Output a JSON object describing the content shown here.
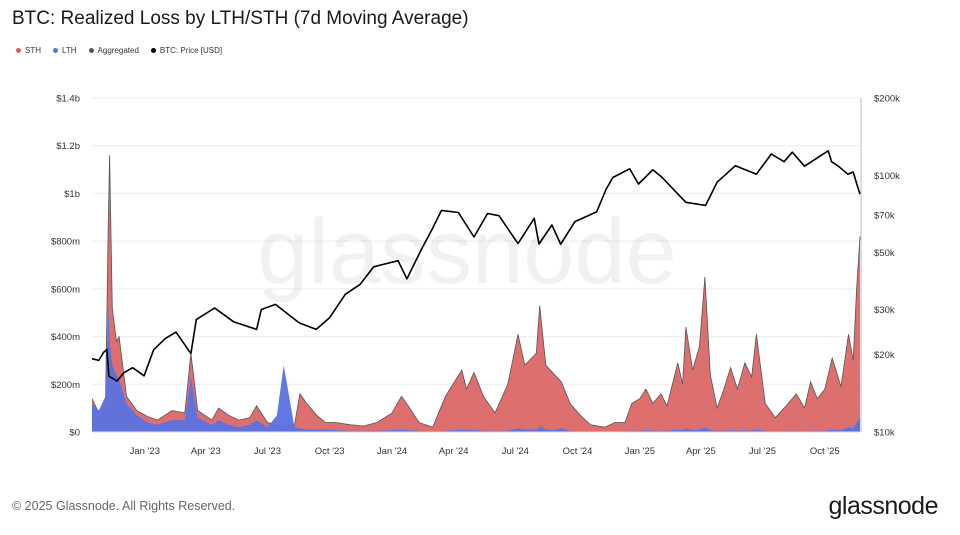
{
  "header": {
    "title": "BTC: Realized Loss by LTH/STH (7d Moving Average)"
  },
  "legend": [
    {
      "label": "STH",
      "color": "#d9605e"
    },
    {
      "label": "LTH",
      "color": "#5a72e0"
    },
    {
      "label": "Aggregated",
      "color": "#555555"
    },
    {
      "label": "BTC: Price [USD]",
      "color": "#000000"
    }
  ],
  "watermark": "glassnode",
  "footer": {
    "copyright": "© 2025 Glassnode. All Rights Reserved.",
    "logo": "glassnode"
  },
  "chart_data": {
    "type": "area",
    "title": "BTC: Realized Loss by LTH/STH (7d Moving Average)",
    "x_ticks": [
      "Jan '23",
      "Apr '23",
      "Jul '23",
      "Oct '23",
      "Jan '24",
      "Apr '24",
      "Jul '24",
      "Oct '24",
      "Jan '25",
      "Apr '25",
      "Jul '25",
      "Oct '25"
    ],
    "x_range": [
      "2022-10-15",
      "2025-11-22"
    ],
    "y_left": {
      "ticks": [
        "$0",
        "$200m",
        "$400m",
        "$600m",
        "$800m",
        "$1b",
        "$1.2b",
        "$1.4b"
      ],
      "range": [
        0,
        1400
      ],
      "unit": "USD millions"
    },
    "y_right": {
      "ticks": [
        "$10k",
        "$20k",
        "$30k",
        "$50k",
        "$70k",
        "$100k",
        "$200k"
      ],
      "range": [
        10000,
        200000
      ],
      "scale": "log"
    },
    "grid": true,
    "legend_position": "top-left",
    "series": [
      {
        "name": "STH",
        "color": "#d9605e",
        "points": [
          [
            "2022-10-15",
            140
          ],
          [
            "2022-10-25",
            80
          ],
          [
            "2022-11-04",
            120
          ],
          [
            "2022-11-08",
            880
          ],
          [
            "2022-11-10",
            1160
          ],
          [
            "2022-11-14",
            520
          ],
          [
            "2022-11-20",
            380
          ],
          [
            "2022-11-24",
            400
          ],
          [
            "2022-12-05",
            150
          ],
          [
            "2022-12-20",
            90
          ],
          [
            "2023-01-05",
            65
          ],
          [
            "2023-01-20",
            50
          ],
          [
            "2023-02-10",
            90
          ],
          [
            "2023-03-01",
            80
          ],
          [
            "2023-03-10",
            330
          ],
          [
            "2023-03-20",
            90
          ],
          [
            "2023-04-10",
            50
          ],
          [
            "2023-04-20",
            100
          ],
          [
            "2023-05-05",
            70
          ],
          [
            "2023-05-20",
            50
          ],
          [
            "2023-06-05",
            60
          ],
          [
            "2023-06-15",
            110
          ],
          [
            "2023-07-01",
            40
          ],
          [
            "2023-07-15",
            30
          ],
          [
            "2023-07-25",
            20
          ],
          [
            "2023-08-10",
            30
          ],
          [
            "2023-08-18",
            160
          ],
          [
            "2023-08-28",
            120
          ],
          [
            "2023-09-12",
            70
          ],
          [
            "2023-09-25",
            40
          ],
          [
            "2023-10-10",
            40
          ],
          [
            "2023-11-01",
            30
          ],
          [
            "2023-11-20",
            25
          ],
          [
            "2023-12-10",
            40
          ],
          [
            "2024-01-01",
            80
          ],
          [
            "2024-01-15",
            150
          ],
          [
            "2024-01-25",
            110
          ],
          [
            "2024-02-10",
            40
          ],
          [
            "2024-03-01",
            20
          ],
          [
            "2024-03-20",
            150
          ],
          [
            "2024-04-13",
            260
          ],
          [
            "2024-04-20",
            180
          ],
          [
            "2024-05-01",
            250
          ],
          [
            "2024-05-15",
            150
          ],
          [
            "2024-06-01",
            80
          ],
          [
            "2024-06-20",
            200
          ],
          [
            "2024-07-05",
            410
          ],
          [
            "2024-07-15",
            280
          ],
          [
            "2024-08-01",
            330
          ],
          [
            "2024-08-06",
            530
          ],
          [
            "2024-08-15",
            280
          ],
          [
            "2024-08-28",
            240
          ],
          [
            "2024-09-07",
            210
          ],
          [
            "2024-09-20",
            120
          ],
          [
            "2024-10-05",
            70
          ],
          [
            "2024-10-20",
            30
          ],
          [
            "2024-11-10",
            20
          ],
          [
            "2024-11-25",
            40
          ],
          [
            "2024-12-10",
            40
          ],
          [
            "2024-12-20",
            120
          ],
          [
            "2025-01-01",
            140
          ],
          [
            "2025-01-10",
            180
          ],
          [
            "2025-01-20",
            120
          ],
          [
            "2025-02-01",
            160
          ],
          [
            "2025-02-10",
            110
          ],
          [
            "2025-02-26",
            290
          ],
          [
            "2025-03-05",
            200
          ],
          [
            "2025-03-10",
            440
          ],
          [
            "2025-03-20",
            260
          ],
          [
            "2025-03-30",
            360
          ],
          [
            "2025-04-07",
            650
          ],
          [
            "2025-04-15",
            240
          ],
          [
            "2025-04-25",
            100
          ],
          [
            "2025-05-05",
            180
          ],
          [
            "2025-05-15",
            270
          ],
          [
            "2025-05-25",
            180
          ],
          [
            "2025-06-05",
            290
          ],
          [
            "2025-06-15",
            230
          ],
          [
            "2025-06-22",
            410
          ],
          [
            "2025-07-05",
            120
          ],
          [
            "2025-07-20",
            60
          ],
          [
            "2025-08-05",
            110
          ],
          [
            "2025-08-20",
            160
          ],
          [
            "2025-09-01",
            100
          ],
          [
            "2025-09-10",
            210
          ],
          [
            "2025-09-20",
            140
          ],
          [
            "2025-10-01",
            180
          ],
          [
            "2025-10-12",
            310
          ],
          [
            "2025-10-25",
            190
          ],
          [
            "2025-11-05",
            410
          ],
          [
            "2025-11-12",
            300
          ],
          [
            "2025-11-17",
            600
          ],
          [
            "2025-11-22",
            820
          ]
        ]
      },
      {
        "name": "LTH",
        "color": "#5a72e0",
        "points": [
          [
            "2022-10-15",
            120
          ],
          [
            "2022-10-25",
            90
          ],
          [
            "2022-11-04",
            150
          ],
          [
            "2022-11-08",
            520
          ],
          [
            "2022-11-10",
            380
          ],
          [
            "2022-11-14",
            280
          ],
          [
            "2022-11-20",
            240
          ],
          [
            "2022-11-24",
            220
          ],
          [
            "2022-12-05",
            120
          ],
          [
            "2022-12-20",
            70
          ],
          [
            "2023-01-05",
            40
          ],
          [
            "2023-01-20",
            30
          ],
          [
            "2023-02-10",
            50
          ],
          [
            "2023-03-01",
            50
          ],
          [
            "2023-03-10",
            230
          ],
          [
            "2023-03-20",
            60
          ],
          [
            "2023-04-10",
            30
          ],
          [
            "2023-04-20",
            50
          ],
          [
            "2023-05-05",
            30
          ],
          [
            "2023-05-20",
            20
          ],
          [
            "2023-06-05",
            30
          ],
          [
            "2023-06-15",
            50
          ],
          [
            "2023-07-01",
            20
          ],
          [
            "2023-07-15",
            70
          ],
          [
            "2023-07-25",
            280
          ],
          [
            "2023-08-10",
            20
          ],
          [
            "2023-08-18",
            15
          ],
          [
            "2023-08-28",
            10
          ],
          [
            "2023-09-12",
            10
          ],
          [
            "2023-09-25",
            10
          ],
          [
            "2023-10-10",
            8
          ],
          [
            "2023-11-01",
            5
          ],
          [
            "2023-11-20",
            5
          ],
          [
            "2023-12-10",
            5
          ],
          [
            "2024-01-01",
            8
          ],
          [
            "2024-01-15",
            10
          ],
          [
            "2024-01-25",
            8
          ],
          [
            "2024-02-10",
            5
          ],
          [
            "2024-03-01",
            3
          ],
          [
            "2024-03-20",
            5
          ],
          [
            "2024-04-13",
            10
          ],
          [
            "2024-04-20",
            8
          ],
          [
            "2024-05-01",
            8
          ],
          [
            "2024-05-15",
            5
          ],
          [
            "2024-06-01",
            5
          ],
          [
            "2024-06-20",
            5
          ],
          [
            "2024-07-05",
            15
          ],
          [
            "2024-07-15",
            10
          ],
          [
            "2024-08-01",
            10
          ],
          [
            "2024-08-06",
            25
          ],
          [
            "2024-08-15",
            10
          ],
          [
            "2024-08-28",
            8
          ],
          [
            "2024-09-07",
            15
          ],
          [
            "2024-09-20",
            5
          ],
          [
            "2024-10-05",
            3
          ],
          [
            "2024-10-20",
            3
          ],
          [
            "2024-11-10",
            2
          ],
          [
            "2024-11-25",
            3
          ],
          [
            "2024-12-10",
            3
          ],
          [
            "2024-12-20",
            5
          ],
          [
            "2025-01-01",
            5
          ],
          [
            "2025-01-10",
            8
          ],
          [
            "2025-01-20",
            5
          ],
          [
            "2025-02-01",
            5
          ],
          [
            "2025-02-10",
            5
          ],
          [
            "2025-02-26",
            10
          ],
          [
            "2025-03-05",
            8
          ],
          [
            "2025-03-10",
            15
          ],
          [
            "2025-03-20",
            8
          ],
          [
            "2025-03-30",
            10
          ],
          [
            "2025-04-07",
            20
          ],
          [
            "2025-04-15",
            8
          ],
          [
            "2025-04-25",
            5
          ],
          [
            "2025-05-05",
            5
          ],
          [
            "2025-05-15",
            8
          ],
          [
            "2025-05-25",
            5
          ],
          [
            "2025-06-05",
            8
          ],
          [
            "2025-06-15",
            5
          ],
          [
            "2025-06-22",
            10
          ],
          [
            "2025-07-05",
            5
          ],
          [
            "2025-07-20",
            3
          ],
          [
            "2025-08-05",
            5
          ],
          [
            "2025-08-20",
            5
          ],
          [
            "2025-09-01",
            3
          ],
          [
            "2025-09-10",
            5
          ],
          [
            "2025-09-20",
            5
          ],
          [
            "2025-10-01",
            5
          ],
          [
            "2025-10-12",
            10
          ],
          [
            "2025-10-25",
            8
          ],
          [
            "2025-11-05",
            20
          ],
          [
            "2025-11-12",
            15
          ],
          [
            "2025-11-17",
            40
          ],
          [
            "2025-11-22",
            60
          ]
        ]
      },
      {
        "name": "BTC: Price [USD]",
        "color": "#000000",
        "axis": "right",
        "points": [
          [
            "2022-10-15",
            19300
          ],
          [
            "2022-10-25",
            19000
          ],
          [
            "2022-11-01",
            20400
          ],
          [
            "2022-11-06",
            21000
          ],
          [
            "2022-11-09",
            16500
          ],
          [
            "2022-11-21",
            15800
          ],
          [
            "2022-12-01",
            17000
          ],
          [
            "2022-12-14",
            17800
          ],
          [
            "2022-12-31",
            16550
          ],
          [
            "2023-01-14",
            20900
          ],
          [
            "2023-01-31",
            23100
          ],
          [
            "2023-02-16",
            24500
          ],
          [
            "2023-03-10",
            20200
          ],
          [
            "2023-03-18",
            27400
          ],
          [
            "2023-04-14",
            30400
          ],
          [
            "2023-05-12",
            26900
          ],
          [
            "2023-06-15",
            25100
          ],
          [
            "2023-06-22",
            30000
          ],
          [
            "2023-07-13",
            31400
          ],
          [
            "2023-08-17",
            26600
          ],
          [
            "2023-09-11",
            25100
          ],
          [
            "2023-10-01",
            27900
          ],
          [
            "2023-10-24",
            34400
          ],
          [
            "2023-11-15",
            37600
          ],
          [
            "2023-12-05",
            44000
          ],
          [
            "2024-01-10",
            46500
          ],
          [
            "2024-01-23",
            39500
          ],
          [
            "2024-02-14",
            51800
          ],
          [
            "2024-02-29",
            61500
          ],
          [
            "2024-03-14",
            73000
          ],
          [
            "2024-04-08",
            71600
          ],
          [
            "2024-05-01",
            57500
          ],
          [
            "2024-05-21",
            71000
          ],
          [
            "2024-06-07",
            69600
          ],
          [
            "2024-07-05",
            54200
          ],
          [
            "2024-07-29",
            68000
          ],
          [
            "2024-08-05",
            54000
          ],
          [
            "2024-08-24",
            64000
          ],
          [
            "2024-09-06",
            53900
          ],
          [
            "2024-09-27",
            66000
          ],
          [
            "2024-10-29",
            72000
          ],
          [
            "2024-11-12",
            88000
          ],
          [
            "2024-11-22",
            98000
          ],
          [
            "2024-12-17",
            106000
          ],
          [
            "2024-12-30",
            92500
          ],
          [
            "2025-01-20",
            105000
          ],
          [
            "2025-02-03",
            98000
          ],
          [
            "2025-02-27",
            84000
          ],
          [
            "2025-03-10",
            78500
          ],
          [
            "2025-04-08",
            76300
          ],
          [
            "2025-04-25",
            94000
          ],
          [
            "2025-05-22",
            109000
          ],
          [
            "2025-06-22",
            101000
          ],
          [
            "2025-07-14",
            121000
          ],
          [
            "2025-08-02",
            113000
          ],
          [
            "2025-08-14",
            123000
          ],
          [
            "2025-09-01",
            108500
          ],
          [
            "2025-10-06",
            124500
          ],
          [
            "2025-10-11",
            113000
          ],
          [
            "2025-10-22",
            108000
          ],
          [
            "2025-11-04",
            101000
          ],
          [
            "2025-11-12",
            103000
          ],
          [
            "2025-11-17",
            93000
          ],
          [
            "2025-11-22",
            84500
          ]
        ]
      }
    ]
  }
}
